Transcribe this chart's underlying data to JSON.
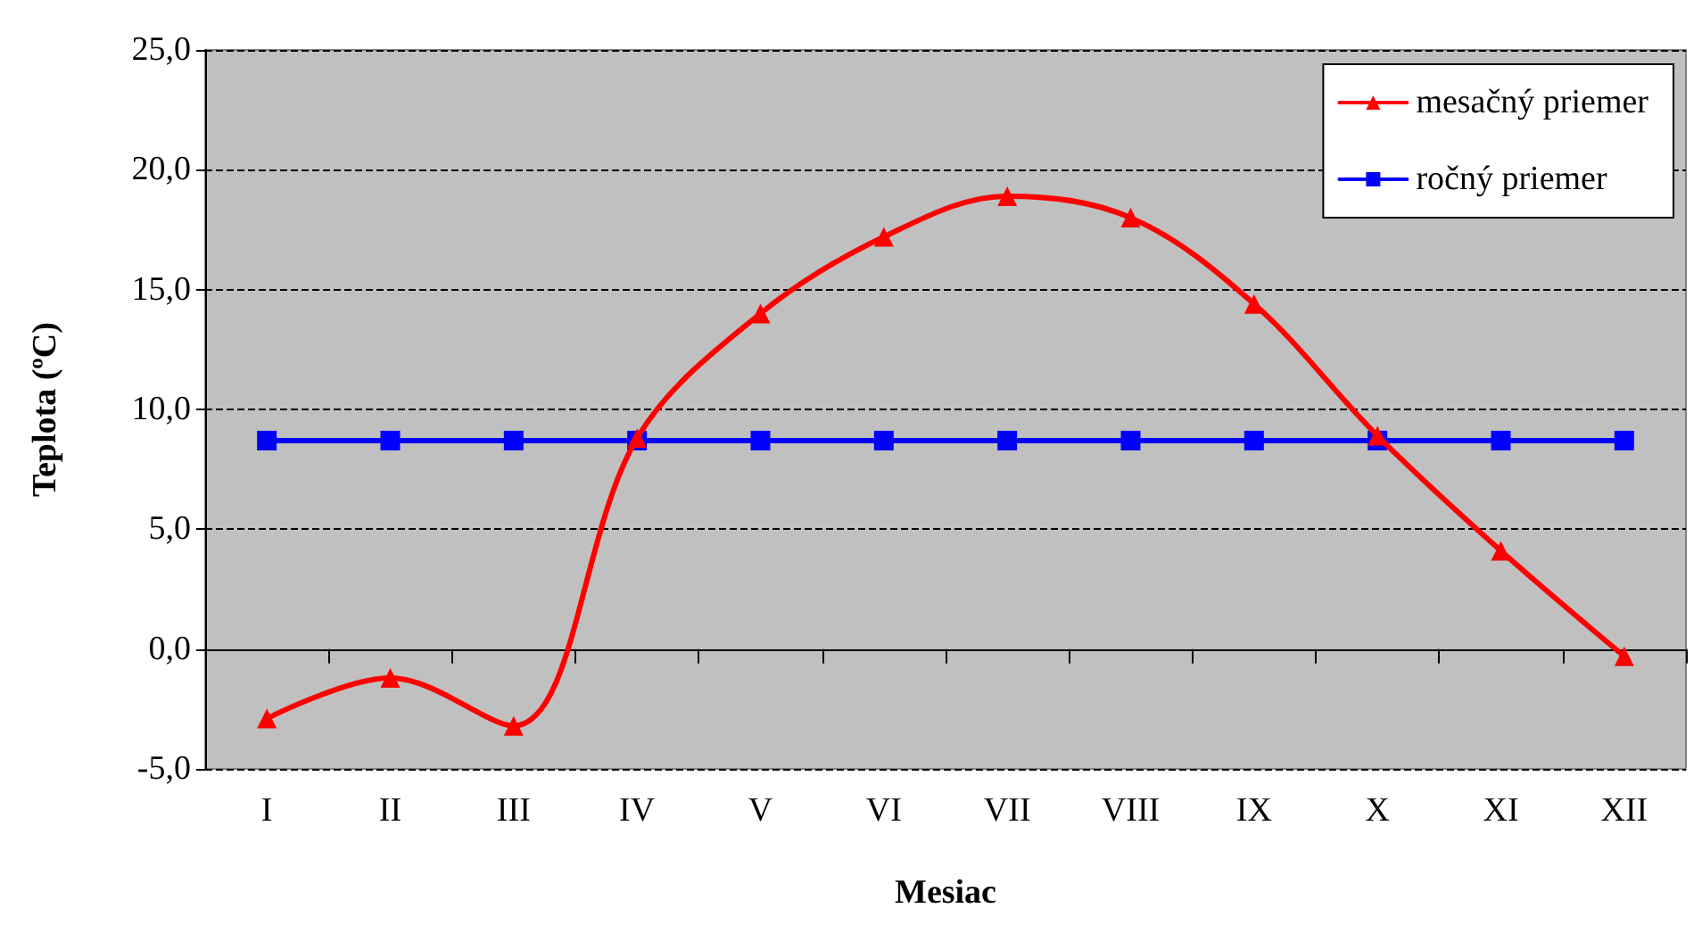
{
  "chart_data": {
    "type": "line",
    "xlabel": "Mesiac",
    "ylabel": "Teplota (ºC)",
    "categories": [
      "I",
      "II",
      "III",
      "IV",
      "V",
      "VI",
      "VII",
      "VIII",
      "IX",
      "X",
      "XI",
      "XII"
    ],
    "series": [
      {
        "name": "mesačný priemer",
        "color": "#ff0000",
        "marker": "triangle",
        "values": [
          -2.9,
          -1.2,
          -3.2,
          8.8,
          14.0,
          17.2,
          18.9,
          18.0,
          14.4,
          8.9,
          4.1,
          -0.3
        ]
      },
      {
        "name": "ročný priemer",
        "color": "#0000ff",
        "marker": "square",
        "values": [
          8.7,
          8.7,
          8.7,
          8.7,
          8.7,
          8.7,
          8.7,
          8.7,
          8.7,
          8.7,
          8.7,
          8.7
        ]
      }
    ],
    "ylim": [
      -5,
      25
    ],
    "yticks": [
      {
        "value": -5,
        "label": "-5,0"
      },
      {
        "value": 0,
        "label": "0,0"
      },
      {
        "value": 5,
        "label": "5,0"
      },
      {
        "value": 10,
        "label": "10,0"
      },
      {
        "value": 15,
        "label": "15,0"
      },
      {
        "value": 20,
        "label": "20,0"
      },
      {
        "value": 25,
        "label": "25,0"
      }
    ],
    "grid": "y",
    "legend": "top right",
    "line_style": "solid"
  }
}
